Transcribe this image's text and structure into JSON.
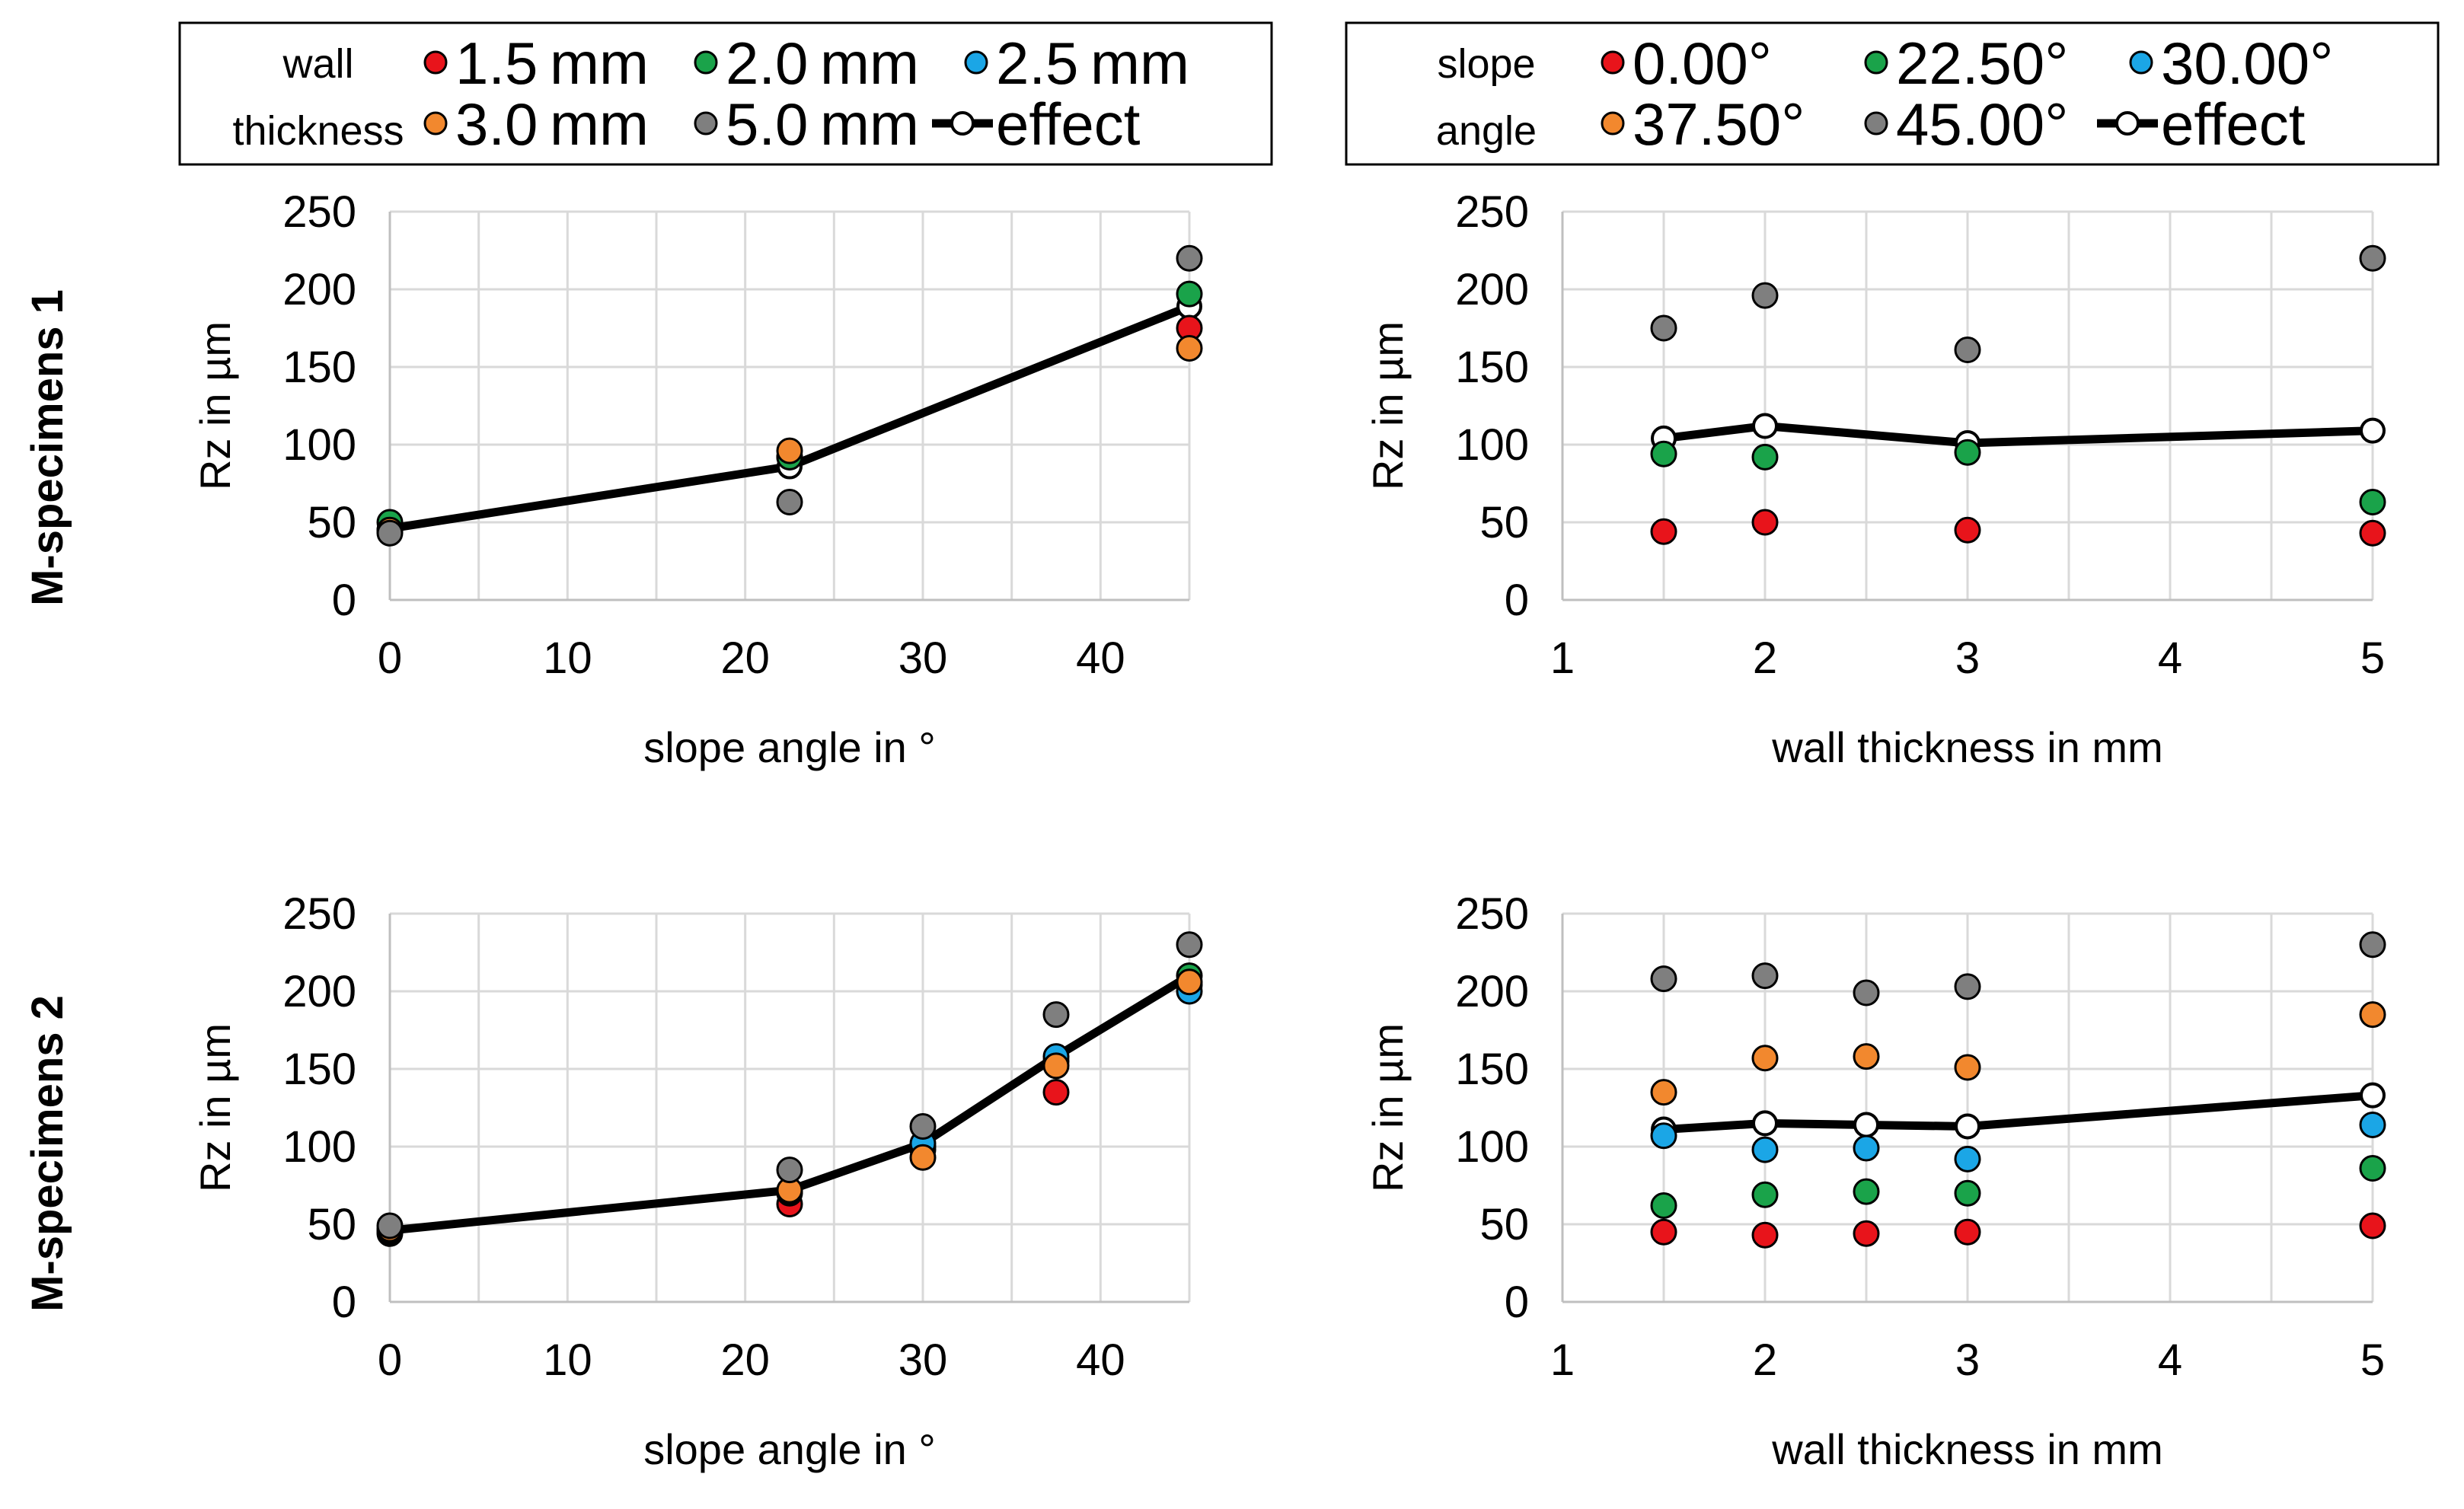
{
  "colors": {
    "red": "#e8141b",
    "green": "#1aa34a",
    "blue": "#1ba6e6",
    "orange": "#f2882e",
    "gray": "#7f7f7f",
    "effect_line": "#000000",
    "effect_marker": "#ffffff",
    "grid": "#d9d9d9"
  },
  "legends": [
    {
      "title_lines": [
        "wall",
        "thickness"
      ],
      "items": [
        {
          "label": "1.5 mm",
          "color_key": "red"
        },
        {
          "label": "2.0 mm",
          "color_key": "green"
        },
        {
          "label": "2.5 mm",
          "color_key": "blue"
        },
        {
          "label": "3.0 mm",
          "color_key": "orange"
        },
        {
          "label": "5.0 mm",
          "color_key": "gray"
        },
        {
          "label": "effect",
          "color_key": "effect"
        }
      ]
    },
    {
      "title_lines": [
        "slope",
        "angle"
      ],
      "items": [
        {
          "label": "0.00°",
          "color_key": "red"
        },
        {
          "label": "22.50°",
          "color_key": "green"
        },
        {
          "label": "30.00°",
          "color_key": "blue"
        },
        {
          "label": "37.50°",
          "color_key": "orange"
        },
        {
          "label": "45.00°",
          "color_key": "gray"
        },
        {
          "label": "effect",
          "color_key": "effect"
        }
      ]
    }
  ],
  "row_labels": [
    "M-specimens 1",
    "M-specimens 2"
  ],
  "chart_data": [
    {
      "type": "scatter",
      "row": 0,
      "col": 0,
      "xlabel": "slope angle in °",
      "ylabel": "Rz in µm",
      "xlim": [
        0,
        45
      ],
      "ylim": [
        0,
        250
      ],
      "xticks": [
        0,
        10,
        20,
        30,
        40
      ],
      "yticks": [
        0,
        50,
        100,
        150,
        200,
        250
      ],
      "series": [
        {
          "name": "1.5 mm",
          "color_key": "red",
          "points": [
            [
              0,
              45
            ],
            [
              22.5,
              92
            ],
            [
              45,
              175
            ]
          ]
        },
        {
          "name": "2.0 mm",
          "color_key": "green",
          "points": [
            [
              0,
              50
            ],
            [
              22.5,
              92
            ],
            [
              45,
              197
            ]
          ]
        },
        {
          "name": "3.0 mm",
          "color_key": "orange",
          "points": [
            [
              0,
              45
            ],
            [
              22.5,
              96
            ],
            [
              45,
              162
            ]
          ]
        },
        {
          "name": "5.0 mm",
          "color_key": "gray",
          "points": [
            [
              0,
              43
            ],
            [
              22.5,
              63
            ],
            [
              45,
              220
            ]
          ]
        }
      ],
      "effect": {
        "name": "effect",
        "points": [
          [
            0,
            46
          ],
          [
            22.5,
            86
          ],
          [
            45,
            189
          ]
        ]
      }
    },
    {
      "type": "scatter",
      "row": 0,
      "col": 1,
      "xlabel": "wall thickness in mm",
      "ylabel": "Rz in µm",
      "xlim": [
        1,
        5
      ],
      "ylim": [
        0,
        250
      ],
      "xticks": [
        1,
        2,
        3,
        4,
        5
      ],
      "yticks": [
        0,
        50,
        100,
        150,
        200,
        250
      ],
      "series": [
        {
          "name": "0.00°",
          "color_key": "red",
          "points": [
            [
              1.5,
              44
            ],
            [
              2,
              50
            ],
            [
              3,
              45
            ],
            [
              5,
              43
            ]
          ]
        },
        {
          "name": "22.50°",
          "color_key": "green",
          "points": [
            [
              1.5,
              94
            ],
            [
              2,
              92
            ],
            [
              3,
              95
            ],
            [
              5,
              63
            ]
          ]
        },
        {
          "name": "45.00°",
          "color_key": "gray",
          "points": [
            [
              1.5,
              175
            ],
            [
              2,
              196
            ],
            [
              3,
              161
            ],
            [
              5,
              220
            ]
          ]
        }
      ],
      "effect": {
        "name": "effect",
        "points": [
          [
            1.5,
            104
          ],
          [
            2,
            112
          ],
          [
            3,
            101
          ],
          [
            5,
            109
          ]
        ]
      }
    },
    {
      "type": "scatter",
      "row": 1,
      "col": 0,
      "xlabel": "slope angle in °",
      "ylabel": "Rz in µm",
      "xlim": [
        0,
        45
      ],
      "ylim": [
        0,
        250
      ],
      "xticks": [
        0,
        10,
        20,
        30,
        40
      ],
      "yticks": [
        0,
        50,
        100,
        150,
        200,
        250
      ],
      "series": [
        {
          "name": "1.5 mm",
          "color_key": "red",
          "points": [
            [
              0,
              44
            ],
            [
              22.5,
              63
            ],
            [
              30,
              98
            ],
            [
              37.5,
              135
            ],
            [
              45,
              204
            ]
          ]
        },
        {
          "name": "2.0 mm",
          "color_key": "green",
          "points": [
            [
              0,
              45
            ],
            [
              22.5,
              70
            ],
            [
              30,
              100
            ],
            [
              37.5,
              155
            ],
            [
              45,
              210
            ]
          ]
        },
        {
          "name": "2.5 mm",
          "color_key": "blue",
          "points": [
            [
              0,
              46
            ],
            [
              22.5,
              71
            ],
            [
              30,
              102
            ],
            [
              37.5,
              158
            ],
            [
              45,
              200
            ]
          ]
        },
        {
          "name": "3.0 mm",
          "color_key": "orange",
          "points": [
            [
              0,
              47
            ],
            [
              22.5,
              72
            ],
            [
              30,
              93
            ],
            [
              37.5,
              152
            ],
            [
              45,
              206
            ]
          ]
        },
        {
          "name": "5.0 mm",
          "color_key": "gray",
          "points": [
            [
              0,
              49
            ],
            [
              22.5,
              85
            ],
            [
              30,
              113
            ],
            [
              37.5,
              185
            ],
            [
              45,
              230
            ]
          ]
        }
      ],
      "effect": {
        "name": "effect",
        "points": [
          [
            0,
            46
          ],
          [
            22.5,
            72
          ],
          [
            30,
            102
          ],
          [
            37.5,
            158
          ],
          [
            45,
            210
          ]
        ]
      }
    },
    {
      "type": "scatter",
      "row": 1,
      "col": 1,
      "xlabel": "wall thickness in mm",
      "ylabel": "Rz in µm",
      "xlim": [
        1,
        5
      ],
      "ylim": [
        0,
        250
      ],
      "xticks": [
        1,
        2,
        3,
        4,
        5
      ],
      "yticks": [
        0,
        50,
        100,
        150,
        200,
        250
      ],
      "series": [
        {
          "name": "0.00°",
          "color_key": "red",
          "points": [
            [
              1.5,
              45
            ],
            [
              2,
              43
            ],
            [
              2.5,
              44
            ],
            [
              3,
              45
            ],
            [
              5,
              49
            ]
          ]
        },
        {
          "name": "22.50°",
          "color_key": "green",
          "points": [
            [
              1.5,
              62
            ],
            [
              2,
              69
            ],
            [
              2.5,
              71
            ],
            [
              3,
              70
            ],
            [
              5,
              86
            ]
          ]
        },
        {
          "name": "30.00°",
          "color_key": "blue",
          "points": [
            [
              1.5,
              107
            ],
            [
              2,
              98
            ],
            [
              2.5,
              99
            ],
            [
              3,
              92
            ],
            [
              5,
              114
            ]
          ]
        },
        {
          "name": "37.50°",
          "color_key": "orange",
          "points": [
            [
              1.5,
              135
            ],
            [
              2,
              157
            ],
            [
              2.5,
              158
            ],
            [
              3,
              151
            ],
            [
              5,
              185
            ]
          ]
        },
        {
          "name": "45.00°",
          "color_key": "gray",
          "points": [
            [
              1.5,
              208
            ],
            [
              2,
              210
            ],
            [
              2.5,
              199
            ],
            [
              3,
              203
            ],
            [
              5,
              230
            ]
          ]
        }
      ],
      "effect": {
        "name": "effect",
        "points": [
          [
            1.5,
            111
          ],
          [
            2,
            115
          ],
          [
            2.5,
            114
          ],
          [
            3,
            113
          ],
          [
            5,
            133
          ]
        ]
      }
    }
  ]
}
